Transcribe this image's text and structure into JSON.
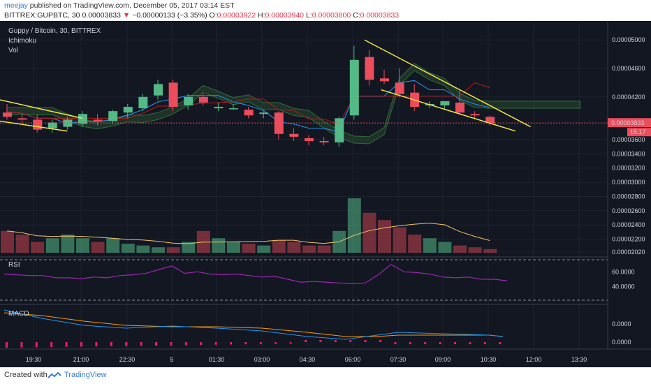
{
  "header": {
    "author": "meejay",
    "published_text": "published on TradingView.com, December 05, 2017 03:14 EST",
    "symbol": "BITTREX:GUPBTC, 30",
    "last": "0.00003833",
    "arrow": "▼",
    "change": "−0.00000133 (−3.35%)",
    "open_label": "O:",
    "open": "0.00003922",
    "high_label": "H:",
    "high": "0.00003940",
    "low_label": "L:",
    "low": "0.00003800",
    "close_label": "C:",
    "close": "0.00003833"
  },
  "footer": {
    "created_with": "Created with",
    "brand": "TradingView"
  },
  "colors": {
    "bg": "#131722",
    "up": "#53b987",
    "down": "#eb4d5c",
    "trendline": "#f5e63d",
    "rsi": "#9b27b0",
    "macd": "#2196f3",
    "signal": "#ff9800",
    "volma": "#f5c36a"
  },
  "chart_data": {
    "type": "candlestick",
    "title": "Guppy / Bitcoin, 30, BITTREX",
    "indicators": [
      "Ichimoku",
      "Vol"
    ],
    "x_tick_labels": [
      "19:30",
      "21:00",
      "22:30",
      "5",
      "01:30",
      "03:00",
      "04:30",
      "06:00",
      "07:30",
      "09:00",
      "10:30",
      "12:00",
      "13:30"
    ],
    "price_ticks": [
      "0.00005000",
      "0.00004600",
      "0.00004200",
      "0.00003600",
      "0.00003400",
      "0.00003200",
      "0.00003000",
      "0.00002800",
      "0.00002600",
      "0.00002400",
      "0.00002200",
      "0.00002020"
    ],
    "price_ylim": [
      2.01e-05,
      5.12e-05
    ],
    "current_price": "0.00003833",
    "countdown": "15:17",
    "candles": [
      {
        "o": 3.98,
        "h": 4.1,
        "l": 3.88,
        "c": 3.92
      },
      {
        "o": 3.9,
        "h": 3.96,
        "l": 3.84,
        "c": 3.88
      },
      {
        "o": 3.88,
        "h": 3.95,
        "l": 3.7,
        "c": 3.74
      },
      {
        "o": 3.76,
        "h": 3.88,
        "l": 3.7,
        "c": 3.84
      },
      {
        "o": 3.78,
        "h": 3.92,
        "l": 3.74,
        "c": 3.88
      },
      {
        "o": 3.82,
        "h": 4.0,
        "l": 3.78,
        "c": 3.96
      },
      {
        "o": 3.88,
        "h": 3.96,
        "l": 3.8,
        "c": 3.86
      },
      {
        "o": 3.86,
        "h": 4.02,
        "l": 3.82,
        "c": 4.0
      },
      {
        "o": 3.98,
        "h": 4.1,
        "l": 3.9,
        "c": 4.06
      },
      {
        "o": 4.04,
        "h": 4.24,
        "l": 4.0,
        "c": 4.2
      },
      {
        "o": 4.22,
        "h": 4.44,
        "l": 4.16,
        "c": 4.38
      },
      {
        "o": 4.4,
        "h": 4.44,
        "l": 4.0,
        "c": 4.06
      },
      {
        "o": 4.08,
        "h": 4.24,
        "l": 4.02,
        "c": 4.2
      },
      {
        "o": 4.2,
        "h": 4.26,
        "l": 4.08,
        "c": 4.12
      },
      {
        "o": 4.04,
        "h": 4.12,
        "l": 4.0,
        "c": 4.06
      },
      {
        "o": 4.04,
        "h": 4.1,
        "l": 4.02,
        "c": 4.04
      },
      {
        "o": 4.02,
        "h": 4.06,
        "l": 3.9,
        "c": 3.94
      },
      {
        "o": 3.96,
        "h": 4.0,
        "l": 3.9,
        "c": 3.98
      },
      {
        "o": 3.98,
        "h": 4.0,
        "l": 3.6,
        "c": 3.68
      },
      {
        "o": 3.68,
        "h": 3.76,
        "l": 3.58,
        "c": 3.64
      },
      {
        "o": 3.62,
        "h": 3.66,
        "l": 3.52,
        "c": 3.58
      },
      {
        "o": 3.58,
        "h": 3.64,
        "l": 3.52,
        "c": 3.56
      },
      {
        "o": 3.56,
        "h": 3.92,
        "l": 3.5,
        "c": 3.9
      },
      {
        "o": 3.94,
        "h": 4.92,
        "l": 3.88,
        "c": 4.72
      },
      {
        "o": 4.76,
        "h": 4.86,
        "l": 4.36,
        "c": 4.44
      },
      {
        "o": 4.46,
        "h": 4.58,
        "l": 4.38,
        "c": 4.42
      },
      {
        "o": 4.4,
        "h": 4.6,
        "l": 4.2,
        "c": 4.24
      },
      {
        "o": 4.26,
        "h": 4.38,
        "l": 4.0,
        "c": 4.06
      },
      {
        "o": 4.08,
        "h": 4.14,
        "l": 4.04,
        "c": 4.1
      },
      {
        "o": 4.08,
        "h": 4.14,
        "l": 4.02,
        "c": 4.14
      },
      {
        "o": 4.12,
        "h": 4.3,
        "l": 3.96,
        "c": 3.98
      },
      {
        "o": 3.96,
        "h": 4.0,
        "l": 3.9,
        "c": 3.94
      },
      {
        "o": 3.92,
        "h": 3.94,
        "l": 3.8,
        "c": 3.83
      }
    ],
    "volume": [
      12,
      10,
      6,
      8,
      10,
      8,
      6,
      8,
      5,
      4,
      3,
      3,
      6,
      12,
      8,
      6,
      5,
      4,
      7,
      6,
      4,
      4,
      12,
      30,
      22,
      18,
      14,
      10,
      8,
      6,
      4,
      3,
      2
    ],
    "volume_ma_note": "yellow moving average line",
    "rsi": {
      "label": "RSI",
      "ticks": [
        "60.0000",
        "40.0000"
      ],
      "ylim": [
        20,
        80
      ],
      "values": [
        57,
        56,
        55,
        55,
        52,
        52,
        51,
        53,
        52,
        55,
        56,
        58,
        63,
        68,
        58,
        60,
        57,
        56,
        57,
        55,
        53,
        54,
        50,
        46,
        47,
        46,
        45,
        44,
        45,
        56,
        70,
        60,
        59,
        57,
        53,
        52,
        53,
        50,
        50,
        48
      ]
    },
    "macd": {
      "label": "MACD",
      "ticks": [
        "0.0000",
        "0.0000"
      ]
    }
  }
}
